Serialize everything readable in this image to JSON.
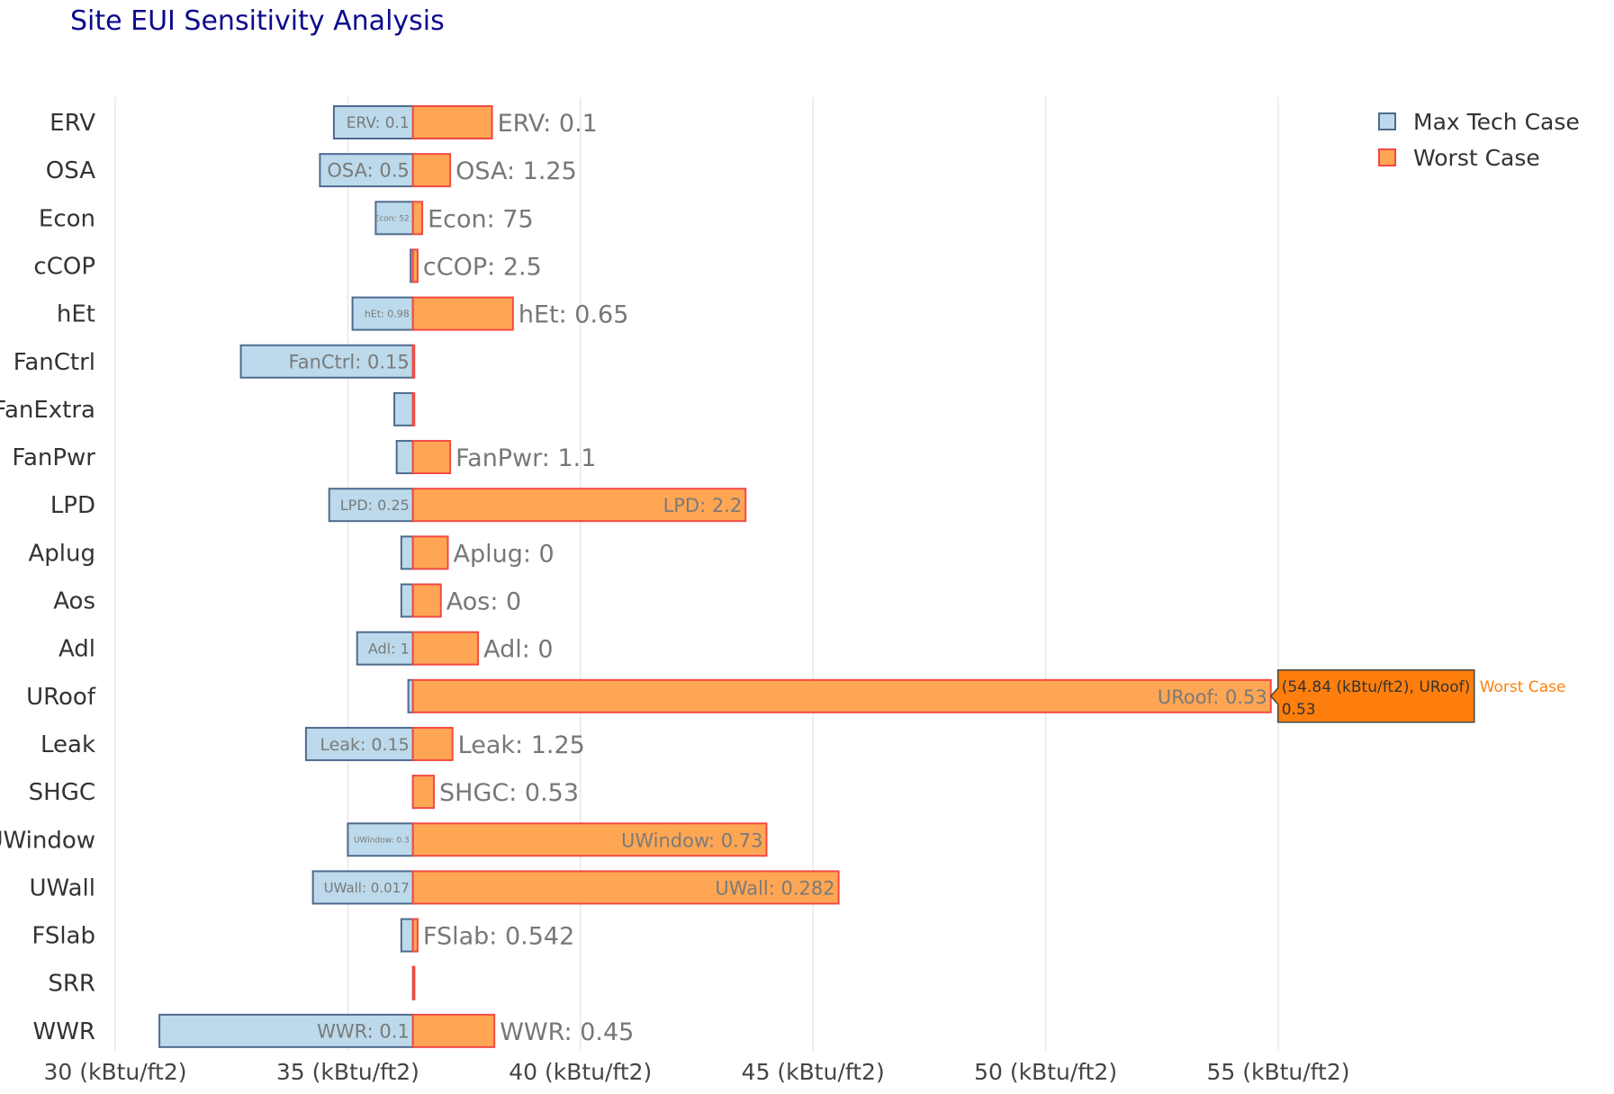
{
  "title": "Site EUI Sensitivity Analysis",
  "colors": {
    "max_fill": "#bcdaeb",
    "max_stroke": "#4f6a8f",
    "worst_fill": "#ffa654",
    "worst_stroke": "#f24a44",
    "grid": "#e8e8e8",
    "inside_label": "#7a7a7a",
    "outside_label": "#777777",
    "tooltip_fill": "#ff7f0e",
    "tooltip_text": "#333333",
    "tooltip_series": "#ff7f0e"
  },
  "chart_data": {
    "type": "bar",
    "orientation": "horizontal",
    "baseline": 36.4,
    "xlim": [
      30,
      60
    ],
    "x_ticks": [
      {
        "value": 30,
        "label": "30 (kBtu/ft2)"
      },
      {
        "value": 35,
        "label": "35 (kBtu/ft2)"
      },
      {
        "value": 40,
        "label": "40 (kBtu/ft2)"
      },
      {
        "value": 45,
        "label": "45 (kBtu/ft2)"
      },
      {
        "value": 50,
        "label": "50 (kBtu/ft2)"
      },
      {
        "value": 55,
        "label": "55 (kBtu/ft2)"
      }
    ],
    "grid": true,
    "legend_position": "top-right",
    "categories": [
      "ERV",
      "OSA",
      "Econ",
      "cCOP",
      "hEt",
      "FanCtrl",
      "FanExtra",
      "FanPwr",
      "LPD",
      "Aplug",
      "Aos",
      "Adl",
      "URoof",
      "Leak",
      "SHGC",
      "UWindow",
      "UWall",
      "FSlab",
      "SRR",
      "WWR"
    ],
    "series": [
      {
        "name": "Max Tech Case",
        "values": [
          34.7,
          34.4,
          35.6,
          36.35,
          35.1,
          32.7,
          36.0,
          36.05,
          34.6,
          36.15,
          36.15,
          35.2,
          36.3,
          34.1,
          36.4,
          35.0,
          34.25,
          36.15,
          36.4,
          30.95
        ],
        "labels": [
          "ERV: 0.1",
          "OSA: 0.5",
          "Econ: 52",
          "",
          "hEt: 0.98",
          "FanCtrl: 0.15",
          "",
          "",
          "LPD: 0.25",
          "",
          "",
          "Adl: 1",
          "",
          "Leak: 0.15",
          "",
          "UWindow: 0.3",
          "UWall: 0.017",
          "",
          "",
          "WWR: 0.1"
        ]
      },
      {
        "name": "Worst Case",
        "values": [
          38.1,
          37.2,
          36.6,
          36.5,
          38.55,
          36.4,
          36.4,
          37.2,
          43.55,
          37.15,
          37.0,
          37.8,
          54.84,
          37.25,
          36.85,
          44.0,
          45.55,
          36.5,
          36.4,
          38.15
        ],
        "labels": [
          "ERV: 0.1",
          "OSA: 1.25",
          "Econ: 75",
          "cCOP: 2.5",
          "hEt: 0.65",
          "",
          "",
          "FanPwr: 1.1",
          "LPD: 2.2",
          "Aplug: 0",
          "Aos: 0",
          "Adl: 0",
          "URoof: 0.53",
          "Leak: 1.25",
          "SHGC: 0.53",
          "UWindow: 0.73",
          "UWall: 0.282",
          "FSlab: 0.542",
          "",
          "WWR: 0.45"
        ]
      }
    ],
    "tooltip": {
      "category": "URoof",
      "series": "Worst Case",
      "line1": "(54.84 (kBtu/ft2), URoof)",
      "line2": "0.53"
    }
  }
}
